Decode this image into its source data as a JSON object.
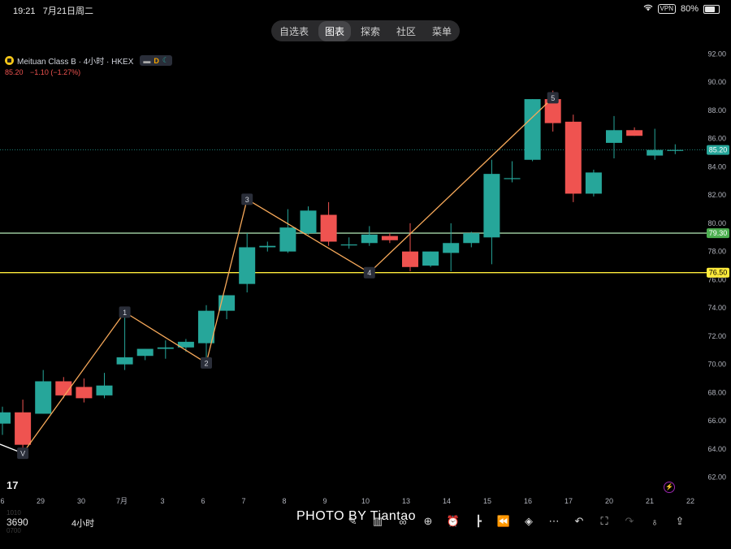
{
  "status_bar": {
    "time": "19:21",
    "date": "7月21日周二",
    "vpn": "VPN",
    "battery": "80%"
  },
  "nav_tabs": [
    {
      "label": "自选表",
      "active": false
    },
    {
      "label": "图表",
      "active": true
    },
    {
      "label": "探索",
      "active": false
    },
    {
      "label": "社区",
      "active": false
    },
    {
      "label": "菜单",
      "active": false
    }
  ],
  "legend": {
    "symbol_title": "Meituan Class B · 4小时 · HKEX",
    "badge_letter": "D",
    "last": "85.20",
    "change": "−1.10 (−1.27%)"
  },
  "bottom": {
    "symbol": "3690",
    "timeframe": "4小时",
    "volume_faint_1": "1010",
    "volume_faint_2": "0700",
    "watermark": "PHOTO BY Tiantao"
  },
  "toolbar_icons": [
    "draw-icon",
    "bar-chart-icon",
    "binoculars-icon",
    "add-icon",
    "alarm-icon",
    "candles-icon",
    "rewind-icon",
    "layers-icon",
    "more-icon",
    "undo-icon",
    "fullscreen-icon",
    "redo-icon",
    "bulb-icon",
    "share-icon"
  ],
  "colors": {
    "up": "#26a69a",
    "down": "#ef5350",
    "wave": "#f7a95a",
    "support": "#ffeb3b",
    "resistance": "#a5d6a7"
  },
  "chart_data": {
    "type": "candlestick",
    "title": "Meituan Class B · 4小时 · HKEX",
    "x_tick_labels": [
      "6",
      "29",
      "30",
      "7月",
      "3",
      "6",
      "7",
      "8",
      "9",
      "10",
      "13",
      "14",
      "15",
      "16",
      "17",
      "20",
      "21",
      "22"
    ],
    "y_ticks": [
      62,
      64,
      66,
      68,
      70,
      72,
      74,
      76,
      78,
      80,
      82,
      84,
      86,
      88,
      90,
      92
    ],
    "y_range": [
      61.0,
      92.2
    ],
    "candles": [
      {
        "o": 65.8,
        "h": 67.0,
        "l": 65.0,
        "c": 66.6
      },
      {
        "o": 66.6,
        "h": 67.5,
        "l": 63.3,
        "c": 64.3
      },
      {
        "o": 66.5,
        "h": 69.6,
        "l": 66.5,
        "c": 68.8
      },
      {
        "o": 68.8,
        "h": 69.1,
        "l": 67.6,
        "c": 67.8
      },
      {
        "o": 68.4,
        "h": 69.0,
        "l": 67.3,
        "c": 67.6
      },
      {
        "o": 67.8,
        "h": 69.4,
        "l": 67.6,
        "c": 68.5
      },
      {
        "o": 70.0,
        "h": 73.6,
        "l": 69.6,
        "c": 70.5
      },
      {
        "o": 70.6,
        "h": 71.1,
        "l": 70.3,
        "c": 71.1
      },
      {
        "o": 71.1,
        "h": 71.7,
        "l": 70.4,
        "c": 71.2
      },
      {
        "o": 71.2,
        "h": 71.8,
        "l": 70.9,
        "c": 71.6
      },
      {
        "o": 71.5,
        "h": 74.2,
        "l": 70.5,
        "c": 73.8
      },
      {
        "o": 73.8,
        "h": 74.9,
        "l": 73.2,
        "c": 74.9
      },
      {
        "o": 75.7,
        "h": 79.3,
        "l": 75.1,
        "c": 78.3
      },
      {
        "o": 78.3,
        "h": 78.7,
        "l": 78.0,
        "c": 78.4
      },
      {
        "o": 78.0,
        "h": 81.0,
        "l": 77.9,
        "c": 79.7
      },
      {
        "o": 79.3,
        "h": 81.2,
        "l": 79.2,
        "c": 80.9
      },
      {
        "o": 80.6,
        "h": 81.5,
        "l": 78.4,
        "c": 78.7
      },
      {
        "o": 78.5,
        "h": 79.0,
        "l": 78.2,
        "c": 78.5
      },
      {
        "o": 78.6,
        "h": 79.8,
        "l": 78.4,
        "c": 79.2
      },
      {
        "o": 79.1,
        "h": 79.3,
        "l": 78.6,
        "c": 78.8
      },
      {
        "o": 78.0,
        "h": 80.0,
        "l": 76.6,
        "c": 76.9
      },
      {
        "o": 77.0,
        "h": 78.0,
        "l": 76.9,
        "c": 78.0
      },
      {
        "o": 77.9,
        "h": 80.0,
        "l": 76.6,
        "c": 78.6
      },
      {
        "o": 78.6,
        "h": 79.4,
        "l": 78.3,
        "c": 79.3
      },
      {
        "o": 79.0,
        "h": 84.5,
        "l": 77.1,
        "c": 83.5
      },
      {
        "o": 83.2,
        "h": 84.4,
        "l": 82.9,
        "c": 83.2
      },
      {
        "o": 84.5,
        "h": 88.8,
        "l": 84.4,
        "c": 88.8
      },
      {
        "o": 88.8,
        "h": 89.4,
        "l": 86.5,
        "c": 87.1
      },
      {
        "o": 87.2,
        "h": 87.7,
        "l": 81.5,
        "c": 82.1
      },
      {
        "o": 82.1,
        "h": 83.8,
        "l": 81.9,
        "c": 83.6
      },
      {
        "o": 85.7,
        "h": 87.6,
        "l": 84.6,
        "c": 86.6
      },
      {
        "o": 86.6,
        "h": 86.8,
        "l": 86.2,
        "c": 86.2
      },
      {
        "o": 84.8,
        "h": 86.7,
        "l": 84.5,
        "c": 85.2
      },
      {
        "o": 85.2,
        "h": 85.6,
        "l": 84.9,
        "c": 85.2
      }
    ],
    "wave_points": [
      {
        "label": "V",
        "idx": 1,
        "value": 63.7
      },
      {
        "label": "1",
        "idx": 6,
        "value": 73.7
      },
      {
        "label": "2",
        "idx": 10,
        "value": 70.1
      },
      {
        "label": "3",
        "idx": 12,
        "value": 81.7
      },
      {
        "label": "4",
        "idx": 18,
        "value": 76.5
      },
      {
        "label": "5",
        "idx": 27,
        "value": 88.9
      }
    ],
    "horizontal_lines": [
      {
        "value": 79.3,
        "label": "79.30"
      },
      {
        "value": 76.5,
        "label": "76.50"
      }
    ],
    "last_price": {
      "value": 85.2,
      "label": "85.20"
    }
  }
}
